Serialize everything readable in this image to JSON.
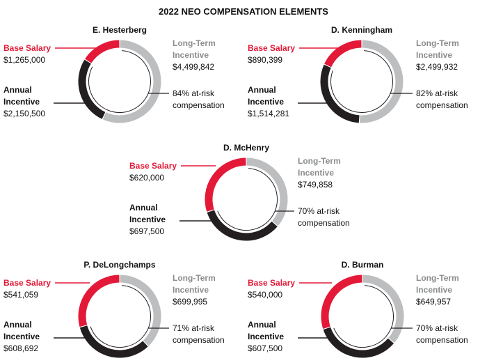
{
  "colors": {
    "base_salary": "#e31937",
    "annual_incentive": "#231f20",
    "long_term_incentive": "#bcbec0",
    "text": "#111111",
    "line_at_risk": "#231f20"
  },
  "chart_data": {
    "type": "pie",
    "title": "2022 NEO COMPENSATION ELEMENTS",
    "charts": [
      {
        "name": "E. Hesterberg",
        "series": [
          {
            "label": "Base Salary",
            "display": "$1,265,000",
            "value": 1265000
          },
          {
            "label": [
              "Annual",
              "Incentive"
            ],
            "display": "$2,150,500",
            "value": 2150500
          },
          {
            "label": [
              "Long-Term",
              "Incentive"
            ],
            "display": "$4,499,842",
            "value": 4499842
          }
        ],
        "at_risk": [
          "84% at-risk",
          "compensation"
        ]
      },
      {
        "name": "D. Kenningham",
        "series": [
          {
            "label": "Base Salary",
            "display": "$890,399",
            "value": 890399
          },
          {
            "label": [
              "Annual",
              "Incentive"
            ],
            "display": "$1,514,281",
            "value": 1514281
          },
          {
            "label": [
              "Long-Term",
              "Incentive"
            ],
            "display": "$2,499,932",
            "value": 2499932
          }
        ],
        "at_risk": [
          "82% at-risk",
          "compensation"
        ]
      },
      {
        "name": "D. McHenry",
        "series": [
          {
            "label": "Base Salary",
            "display": "$620,000",
            "value": 620000
          },
          {
            "label": [
              "Annual",
              "Incentive"
            ],
            "display": "$697,500",
            "value": 697500
          },
          {
            "label": [
              "Long-Term",
              "Incentive"
            ],
            "display": "$749,858",
            "value": 749858
          }
        ],
        "at_risk": [
          "70% at-risk",
          "compensation"
        ]
      },
      {
        "name": "P. DeLongchamps",
        "series": [
          {
            "label": "Base Salary",
            "display": "$541,059",
            "value": 541059
          },
          {
            "label": [
              "Annual",
              "Incentive"
            ],
            "display": "$608,692",
            "value": 608692
          },
          {
            "label": [
              "Long-Term",
              "Incentive"
            ],
            "display": "$699,995",
            "value": 699995
          }
        ],
        "at_risk": [
          "71% at-risk",
          "compensation"
        ]
      },
      {
        "name": "D. Burman",
        "series": [
          {
            "label": "Base Salary",
            "display": "$540,000",
            "value": 540000
          },
          {
            "label": [
              "Annual",
              "Incentive"
            ],
            "display": "$607,500",
            "value": 607500
          },
          {
            "label": [
              "Long-Term",
              "Incentive"
            ],
            "display": "$649,957",
            "value": 649957
          }
        ],
        "at_risk": [
          "70% at-risk",
          "compensation"
        ]
      }
    ]
  }
}
